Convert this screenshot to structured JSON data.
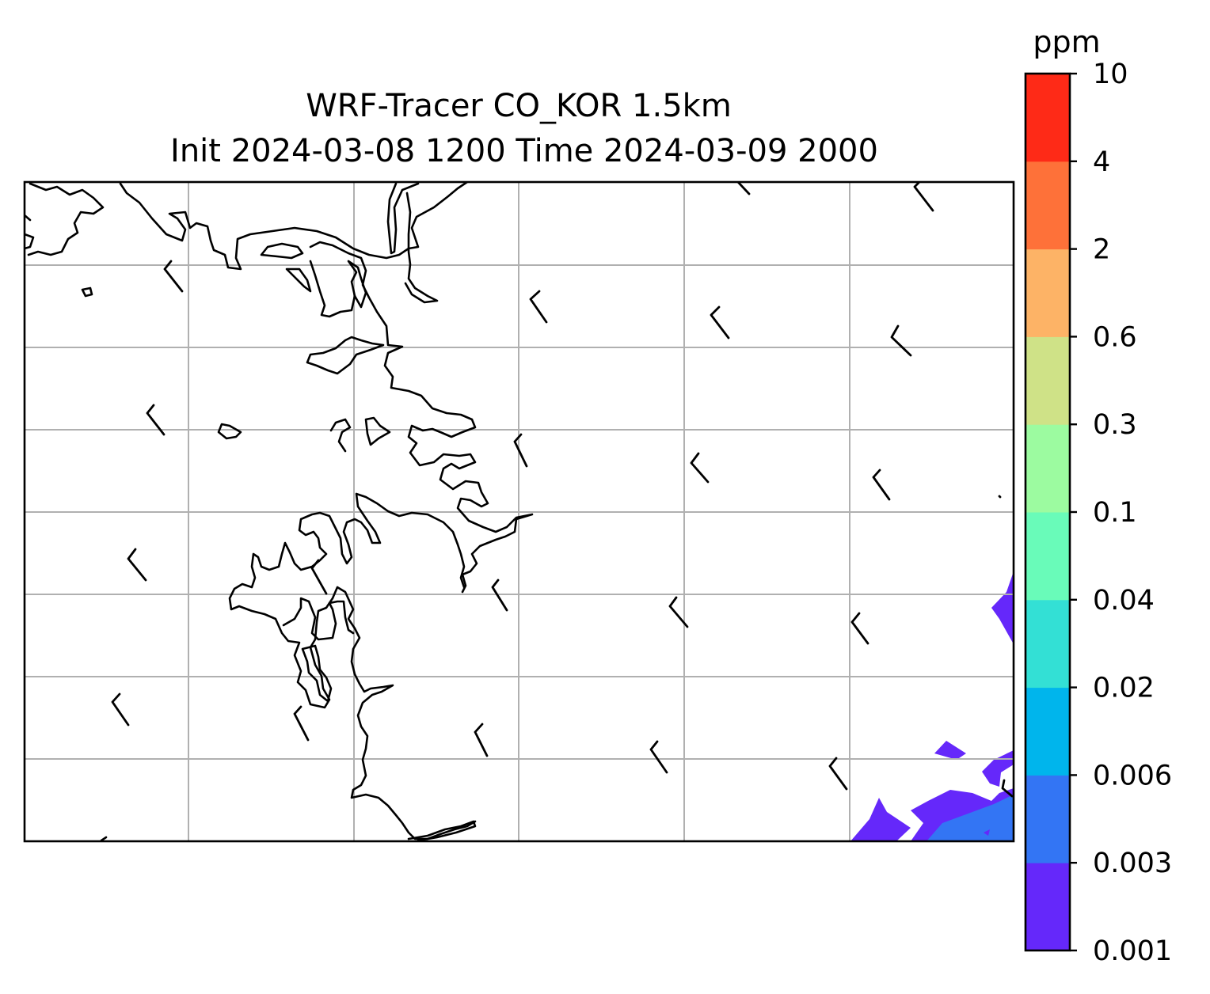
{
  "figure": {
    "title_line1": "WRF-Tracer CO_KOR 1.5km",
    "title_line2": "Init 2024-03-08 1200 Time 2024-03-09 2000"
  },
  "colorbar": {
    "unit": "ppm",
    "levels": [
      "0.001",
      "0.003",
      "0.006",
      "0.02",
      "0.04",
      "0.1",
      "0.3",
      "0.6",
      "2",
      "4",
      "10"
    ],
    "colors": [
      "#6528fa",
      "#3375f4",
      "#00b5ec",
      "#33e0d5",
      "#69fbb9",
      "#9cfba0",
      "#cfe287",
      "#fdb366",
      "#fe7139",
      "#fe2a17"
    ]
  },
  "map": {
    "gridlines": true,
    "grid_color": "#b0b0b0",
    "coastline_color": "#000000",
    "wind_barbs": "present, calm-to-light winds from the northwest",
    "tracer_shading": "lowest bins (0.001–0.006 ppm) along the eastern and southeastern edge"
  }
}
